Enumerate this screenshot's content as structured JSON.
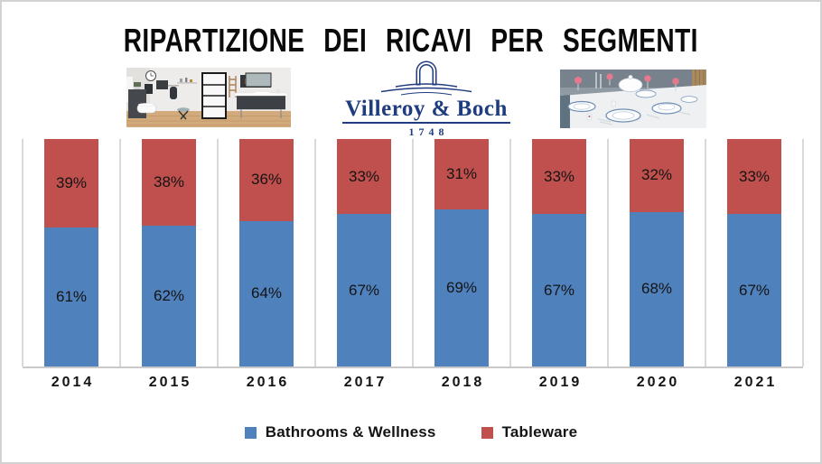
{
  "page": {
    "background": "#ffffff",
    "border_color": "#d2d2d2"
  },
  "header": {
    "title": "RIPARTIZIONE DEI RICAVI PER SEGMENTI",
    "logo": {
      "brand": "Villeroy & Boch",
      "established": "1748",
      "color": "#1E3C7E",
      "icon": "fountain-arch-icon"
    },
    "left_photo": "bathroom-interior-photo",
    "right_photo": "tableware-table-setting-photo"
  },
  "chart_data": {
    "type": "bar",
    "stacked": true,
    "orientation": "vertical",
    "title": "RIPARTIZIONE DEI RICAVI PER SEGMENTI",
    "categories": [
      "2014",
      "2015",
      "2016",
      "2017",
      "2018",
      "2019",
      "2020",
      "2021"
    ],
    "series": [
      {
        "name": "Bathrooms & Wellness",
        "color": "#4F81BD",
        "values": [
          61,
          62,
          64,
          67,
          69,
          67,
          68,
          67
        ]
      },
      {
        "name": "Tableware",
        "color": "#C0504D",
        "values": [
          39,
          38,
          36,
          33,
          31,
          33,
          32,
          33
        ]
      }
    ],
    "label_suffix": "%",
    "data_labels": "percent-centered-inside-segments",
    "ylim": [
      0,
      100
    ],
    "xlabel": "",
    "ylabel": "",
    "grid": "vertical-category-separators",
    "grid_color": "#d9d9d9",
    "axis_color": "#c9c9c9",
    "legend_position": "bottom"
  }
}
